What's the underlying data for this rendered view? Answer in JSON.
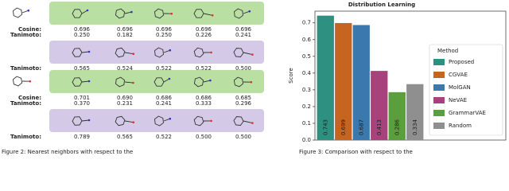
{
  "neighbors": {
    "cosine_label": "Cosine:",
    "tanimoto_label": "Tanimoto:",
    "groups": [
      {
        "cosine": [
          "0.696",
          "0.696",
          "0.696",
          "0.696",
          "0.696"
        ],
        "tanimoto": [
          "0.250",
          "0.182",
          "0.250",
          "0.226",
          "0.241"
        ],
        "alt_tanimoto": [
          "0.565",
          "0.524",
          "0.522",
          "0.522",
          "0.500"
        ]
      },
      {
        "cosine": [
          "0.701",
          "0.690",
          "0.686",
          "0.686",
          "0.685"
        ],
        "tanimoto": [
          "0.370",
          "0.231",
          "0.241",
          "0.333",
          "0.296"
        ],
        "alt_tanimoto": [
          "0.789",
          "0.565",
          "0.522",
          "0.500",
          "0.500"
        ]
      }
    ]
  },
  "captions": [
    "Figure 2:  Nearest neighbors with respect to the",
    "Figure 3:  Comparison with respect to the"
  ],
  "chart_data": {
    "type": "bar",
    "title": "Distribution Learning",
    "ylabel": "Score",
    "categories": [
      "Proposed",
      "CGVAE",
      "MolGAN",
      "NeVAE",
      "GrammarVAE",
      "Random"
    ],
    "values": [
      0.743,
      0.699,
      0.687,
      0.413,
      0.286,
      0.334
    ],
    "colors": [
      "#2e9080",
      "#c6651f",
      "#3a78ad",
      "#a8427c",
      "#5a9e3e",
      "#8f8f8f"
    ],
    "ylim": [
      0,
      0.77
    ],
    "yticks": [
      0.0,
      0.1,
      0.2,
      0.3,
      0.4,
      0.5,
      0.6,
      0.7
    ],
    "yticks_labels": null,
    "legend_title": "Method",
    "legend": "right"
  }
}
